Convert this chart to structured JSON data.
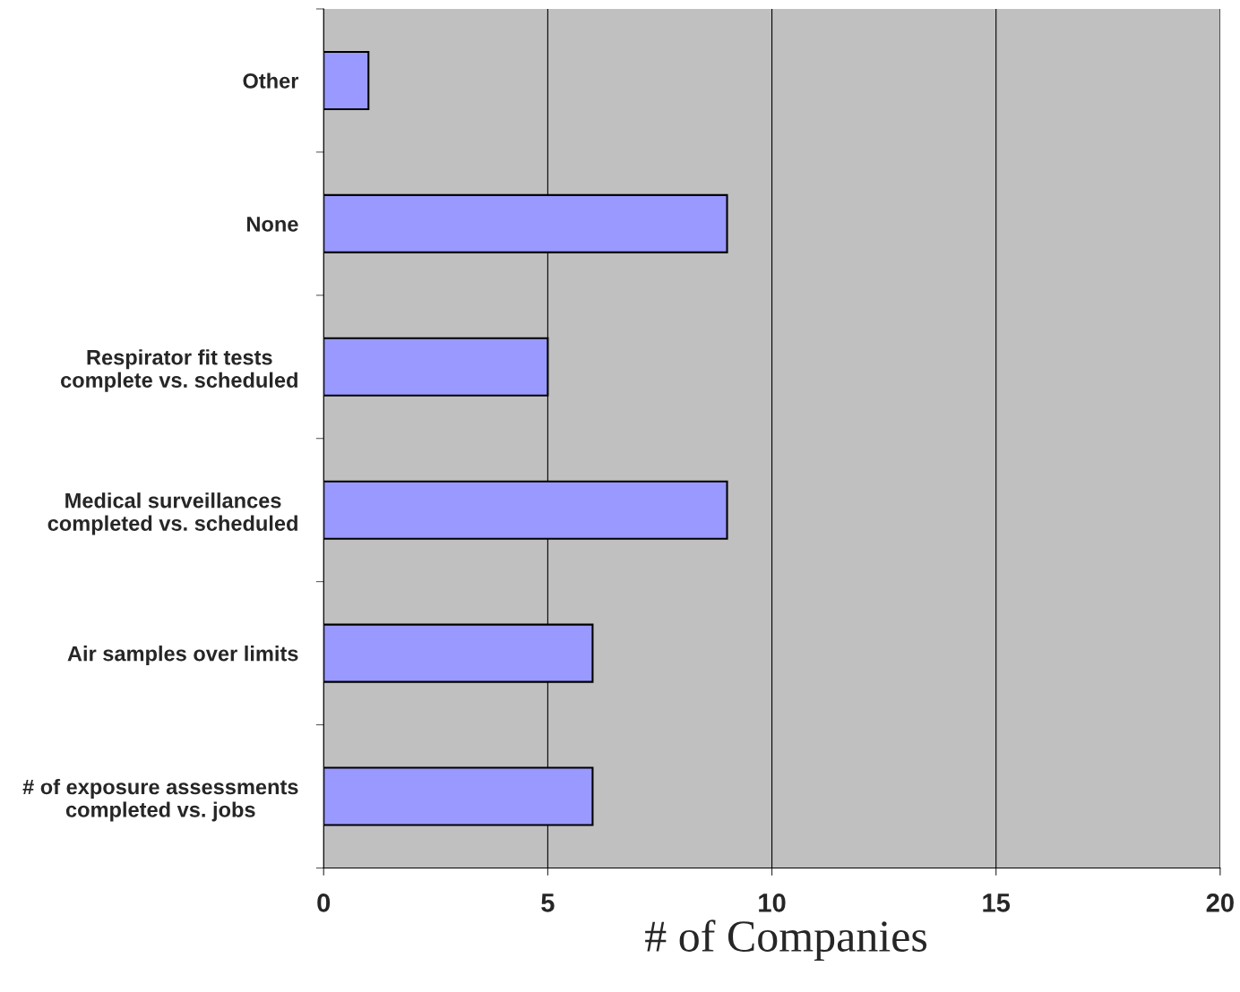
{
  "chart_data": {
    "type": "bar",
    "orientation": "horizontal",
    "xlabel": "# of Companies",
    "categories": [
      "Other",
      "None",
      "Respirator fit tests\ncomplete vs. scheduled",
      "Medical surveillances\ncompleted vs. scheduled",
      "Air samples over limits",
      "# of exposure assessments\ncompleted vs. jobs"
    ],
    "values": [
      1,
      9,
      5,
      9,
      6,
      6
    ],
    "color": "#9999ff",
    "xlim": [
      0,
      20
    ],
    "xticks": [
      0,
      5,
      10,
      15,
      20
    ],
    "grid": "x",
    "legend": false
  }
}
